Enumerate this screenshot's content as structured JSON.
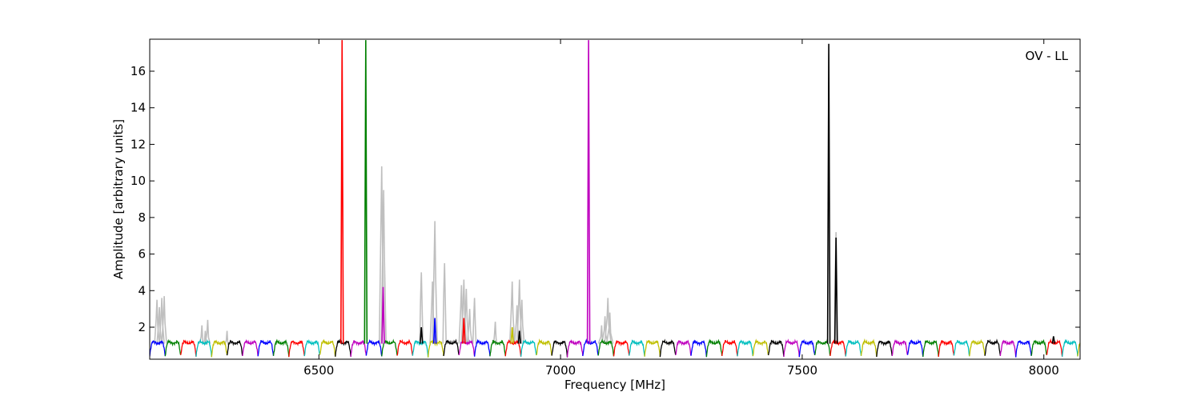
{
  "chart_data": {
    "type": "line",
    "title": "",
    "xlabel": "Frequency [MHz]",
    "ylabel": "Amplitude [arbitrary units]",
    "annotation": "OV - LL",
    "annotation_position": "top-right",
    "xlim": [
      6150,
      8075
    ],
    "ylim": [
      0.25,
      17.75
    ],
    "xticks": [
      6500,
      7000,
      7500,
      8000
    ],
    "yticks": [
      2,
      4,
      6,
      8,
      10,
      12,
      14,
      16
    ],
    "grid": false,
    "legend": "none",
    "channel_width_mhz": 32,
    "channel_color_cycle": [
      "#0000ff",
      "#008000",
      "#ff0000",
      "#00bfbf",
      "#bfbf00",
      "#000000",
      "#bf00bf"
    ],
    "unflagged_color": "#bfbfbf",
    "flagged_spikes": [
      {
        "x": [
          6165,
          6170,
          6175
        ],
        "y": [
          3.5,
          3.1,
          3.6
        ],
        "w": 3
      },
      {
        "x": [
          6180
        ],
        "y": [
          3.7
        ],
        "w": 3
      },
      {
        "x": [
          6258,
          6265,
          6270
        ],
        "y": [
          2.1,
          1.8,
          2.4
        ],
        "w": 3
      },
      {
        "x": [
          6310
        ],
        "y": [
          1.8
        ],
        "w": 3
      },
      {
        "x": [
          6630,
          6634
        ],
        "y": [
          10.8,
          9.5
        ],
        "w": 3
      },
      {
        "x": [
          6712
        ],
        "y": [
          5.0
        ],
        "w": 2
      },
      {
        "x": [
          6735,
          6740
        ],
        "y": [
          4.5,
          7.8
        ],
        "w": 3
      },
      {
        "x": [
          6760
        ],
        "y": [
          5.5
        ],
        "w": 2
      },
      {
        "x": [
          6795,
          6800,
          6805,
          6812
        ],
        "y": [
          4.3,
          4.6,
          4.1,
          3.0
        ],
        "w": 3
      },
      {
        "x": [
          6822
        ],
        "y": [
          3.6
        ],
        "w": 2
      },
      {
        "x": [
          6865
        ],
        "y": [
          2.3
        ],
        "w": 2
      },
      {
        "x": [
          6900,
          6910,
          6915,
          6920
        ],
        "y": [
          4.5,
          3.2,
          4.6,
          3.5
        ],
        "w": 3
      },
      {
        "x": [
          7085,
          7092,
          7098,
          7102
        ],
        "y": [
          2.1,
          2.6,
          3.6,
          2.8
        ],
        "w": 4
      },
      {
        "x": [
          7570
        ],
        "y": [
          7.2
        ],
        "w": 2
      }
    ],
    "rfi_spikes": [
      {
        "x": 6548,
        "y": 17.7,
        "color": "#ff0000"
      },
      {
        "x": 6597,
        "y": 17.7,
        "color": "#008000"
      },
      {
        "x": 6633,
        "y": 4.2,
        "color": "#bf00bf"
      },
      {
        "x": 6712,
        "y": 2.0,
        "color": "#000000"
      },
      {
        "x": 6740,
        "y": 2.5,
        "color": "#0000ff"
      },
      {
        "x": 6800,
        "y": 2.5,
        "color": "#ff0000"
      },
      {
        "x": 6900,
        "y": 2.0,
        "color": "#bfbf00"
      },
      {
        "x": 6915,
        "y": 1.8,
        "color": "#000000"
      },
      {
        "x": 7058,
        "y": 17.7,
        "color": "#bf00bf"
      },
      {
        "x": 7555,
        "y": 17.5,
        "color": "#000000"
      },
      {
        "x": 7570,
        "y": 6.9,
        "color": "#000000"
      },
      {
        "x": 8020,
        "y": 1.5,
        "color": "#000000"
      }
    ]
  }
}
